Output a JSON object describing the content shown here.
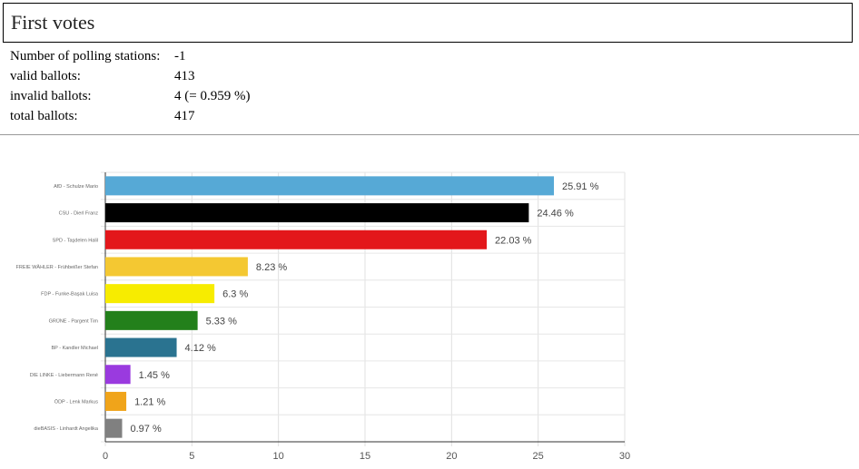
{
  "header": {
    "title": "First votes"
  },
  "stats": [
    {
      "label": "Number of polling stations:",
      "value": "-1"
    },
    {
      "label": "valid ballots:",
      "value": "413"
    },
    {
      "label": "invalid ballots:",
      "value": "4 (= 0.959 %)"
    },
    {
      "label": "total ballots:",
      "value": "417"
    }
  ],
  "chart_data": {
    "type": "bar",
    "orientation": "horizontal",
    "categories": [
      "AfD -  Schulze Mario",
      "CSU -  Dierl Franz",
      "SPD -  Taşdelen Halil",
      "FREIE WÄHLER -  Frühbeißer Stefan",
      "FDP -  Funke-Başak Luisa",
      "GRÜNE -  Pargent Tim",
      "BP -  Kandler Michael",
      "DIE LINKE -  Liebermann René",
      "ÖDP -  Lenk Markus",
      "dieBASIS -  Linhardt Angelika"
    ],
    "values": [
      25.91,
      24.46,
      22.03,
      8.23,
      6.3,
      5.33,
      4.12,
      1.45,
      1.21,
      0.97
    ],
    "data_labels": [
      "25.91 %",
      "24.46 %",
      "22.03 %",
      "8.23 %",
      "6.3 %",
      "5.33 %",
      "4.12 %",
      "1.45 %",
      "1.21 %",
      "0.97 %"
    ],
    "colors": [
      "#56a9d6",
      "#000000",
      "#e3171b",
      "#f4c832",
      "#f7ec00",
      "#23801b",
      "#2a7390",
      "#9a3adf",
      "#f0a41a",
      "#808080"
    ],
    "xlim": [
      0,
      30
    ],
    "xticks": [
      0,
      5,
      10,
      15,
      20,
      25,
      30
    ],
    "grid": true
  }
}
